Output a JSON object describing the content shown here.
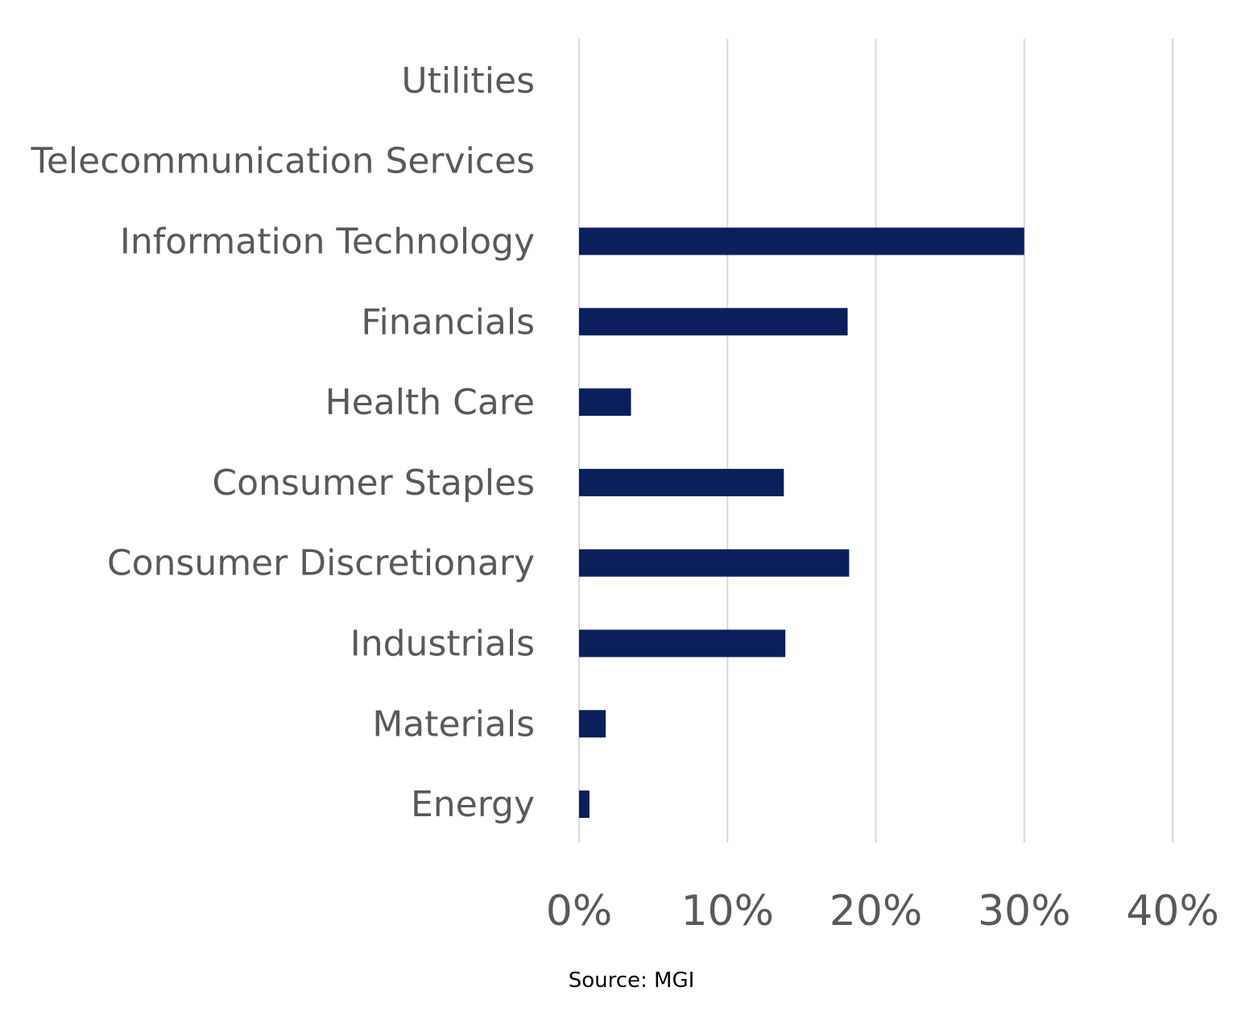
{
  "chart_data": {
    "type": "bar",
    "orientation": "horizontal",
    "categories": [
      "Utilities",
      "Telecommunication Services",
      "Information Technology",
      "Financials",
      "Health Care",
      "Consumer Staples",
      "Consumer Discretionary",
      "Industrials",
      "Materials",
      "Energy"
    ],
    "values": [
      0,
      0,
      30,
      18.1,
      3.5,
      13.8,
      18.2,
      13.9,
      1.8,
      0.7
    ],
    "xlim": [
      0,
      40
    ],
    "xticks": [
      0,
      10,
      20,
      30,
      40
    ],
    "tick_labels": [
      "0%",
      "10%",
      "20%",
      "30%",
      "40%"
    ],
    "grid": true,
    "legend": "none",
    "source": "Source: MGI",
    "colors": {
      "bar": "#0b1f5c",
      "grid": "#d9d9d9",
      "text": "#595959"
    }
  }
}
